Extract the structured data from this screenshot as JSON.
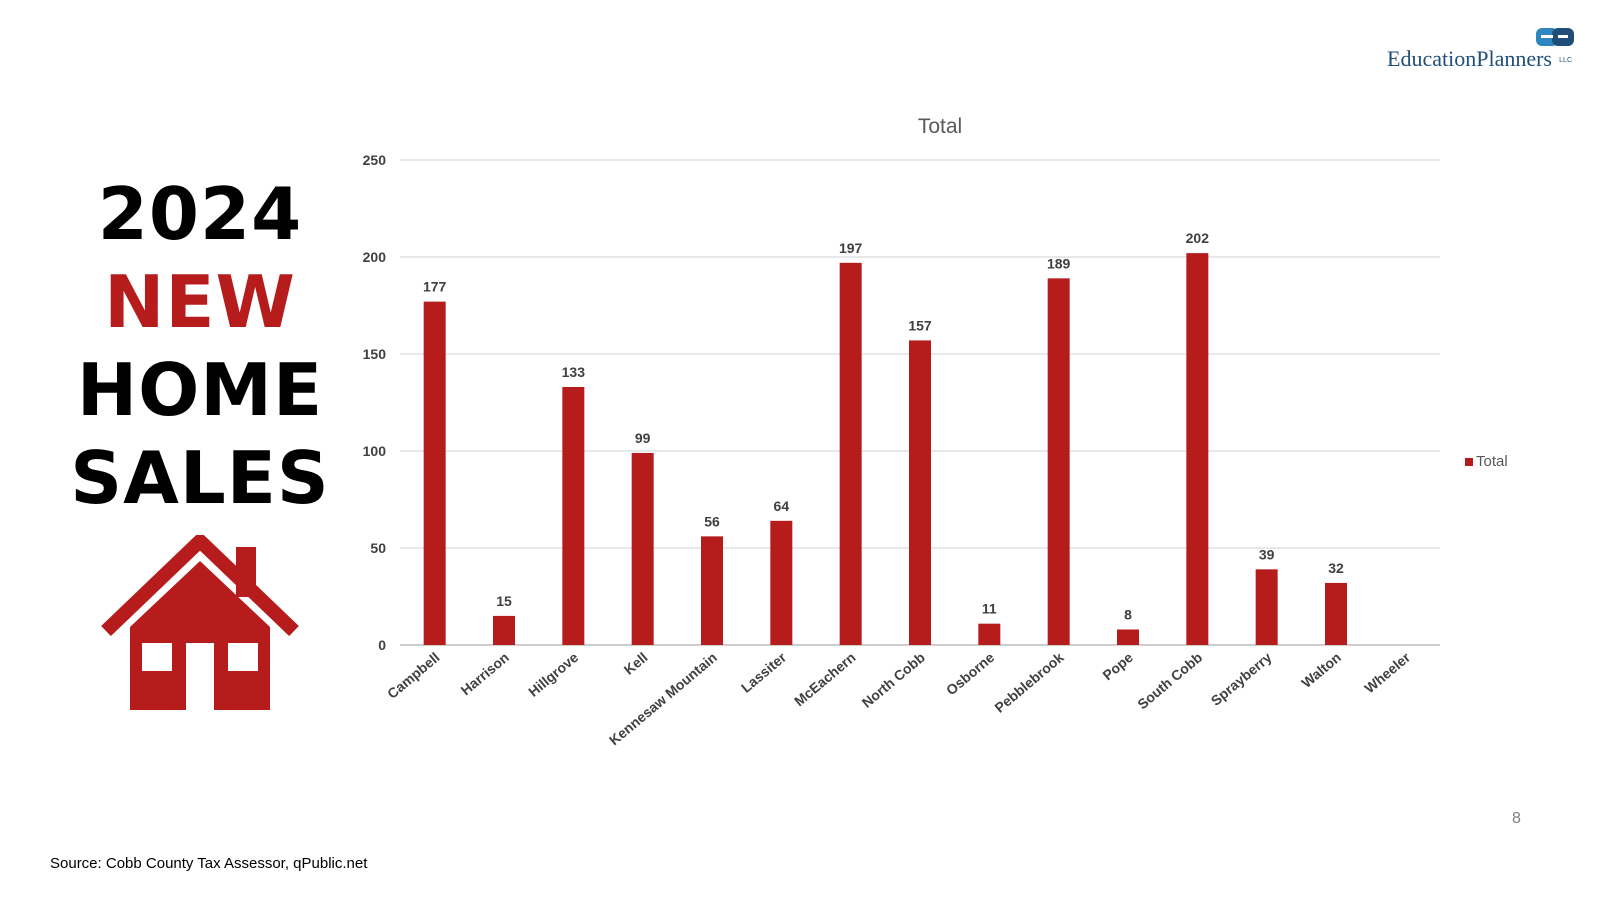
{
  "slide": {
    "headline": {
      "line1": "2024",
      "line2": "NEW",
      "line3": "HOME",
      "line4": "SALES"
    },
    "source": "Source: Cobb County Tax Assessor, qPublic.net",
    "page_number": "8",
    "brand": {
      "text": "EducationPlanners",
      "suffix": "LLC",
      "mark": "ep"
    },
    "colors": {
      "accent": "#b71c1c",
      "brand": "#1f4e79",
      "brand_mark": "#2e86c1"
    }
  },
  "chart_data": {
    "type": "bar",
    "title": "Total",
    "xlabel": "",
    "ylabel": "",
    "categories": [
      "Campbell",
      "Harrison",
      "Hillgrove",
      "Kell",
      "Kennesaw Mountain",
      "Lassiter",
      "McEachern",
      "North Cobb",
      "Osborne",
      "Pebblebrook",
      "Pope",
      "South Cobb",
      "Sprayberry",
      "Walton",
      "Wheeler"
    ],
    "series": [
      {
        "name": "Total",
        "values": [
          177,
          15,
          133,
          99,
          56,
          64,
          197,
          157,
          11,
          189,
          8,
          202,
          39,
          32,
          null
        ],
        "color": "#b71c1c"
      }
    ],
    "ylim": [
      0,
      250
    ],
    "yticks": [
      0,
      50,
      100,
      150,
      200,
      250
    ],
    "grid": true,
    "legend": "right"
  }
}
